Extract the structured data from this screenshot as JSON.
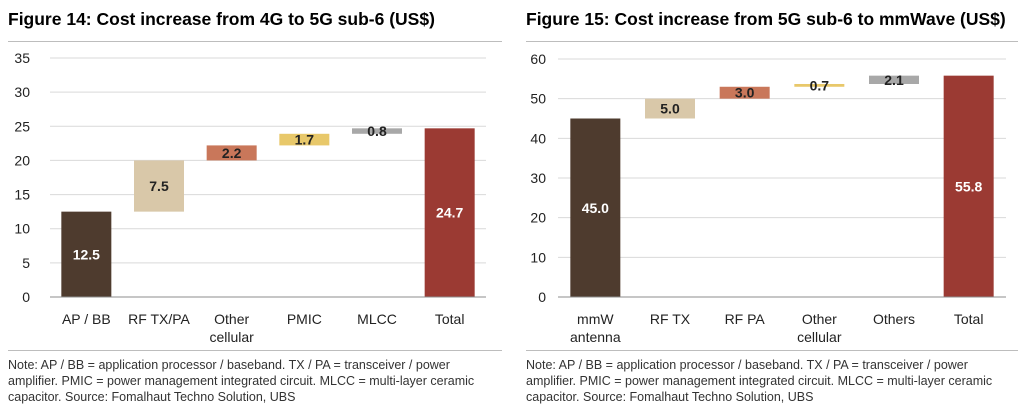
{
  "chart_data": [
    {
      "type": "waterfall",
      "title": "Figure 14: Cost increase from 4G to 5G sub-6 (US$)",
      "categories": [
        [
          "AP / BB"
        ],
        [
          "RF TX/PA"
        ],
        [
          "Other",
          "cellular"
        ],
        [
          "PMIC"
        ],
        [
          "MLCC"
        ],
        [
          "Total"
        ]
      ],
      "bars": [
        {
          "label": "12.5",
          "start": 0,
          "end": 12.5,
          "kind": "base"
        },
        {
          "label": "7.5",
          "start": 12.5,
          "end": 20.0,
          "kind": "increment"
        },
        {
          "label": "2.2",
          "start": 20.0,
          "end": 22.2,
          "kind": "increment"
        },
        {
          "label": "1.7",
          "start": 22.2,
          "end": 23.9,
          "kind": "increment"
        },
        {
          "label": "0.8",
          "start": 23.9,
          "end": 24.7,
          "kind": "increment"
        },
        {
          "label": "24.7",
          "start": 0,
          "end": 24.7,
          "kind": "total"
        }
      ],
      "colors": [
        "#4e3b2e",
        "#d9c8a9",
        "#c9775a",
        "#e8c86a",
        "#a8a8a8",
        "#9b3a33"
      ],
      "ylim": [
        0,
        35
      ],
      "yticks": [
        0,
        5,
        10,
        15,
        20,
        25,
        30,
        35
      ],
      "grid": true,
      "note": "Note: AP / BB = application processor / baseband. TX / PA = transceiver / power amplifier. PMIC = power management integrated circuit. MLCC = multi-layer ceramic capacitor. Source:  Fomalhaut Techno Solution, UBS"
    },
    {
      "type": "waterfall",
      "title": "Figure 15: Cost increase from 5G sub-6 to mmWave (US$)",
      "categories": [
        [
          "mmW",
          "antenna"
        ],
        [
          "RF TX"
        ],
        [
          "RF PA"
        ],
        [
          "Other",
          "cellular"
        ],
        [
          "Others"
        ],
        [
          "Total"
        ]
      ],
      "bars": [
        {
          "label": "45.0",
          "start": 0,
          "end": 45.0,
          "kind": "base"
        },
        {
          "label": "5.0",
          "start": 45.0,
          "end": 50.0,
          "kind": "increment"
        },
        {
          "label": "3.0",
          "start": 50.0,
          "end": 53.0,
          "kind": "increment"
        },
        {
          "label": "0.7",
          "start": 53.0,
          "end": 53.7,
          "kind": "increment"
        },
        {
          "label": "2.1",
          "start": 53.7,
          "end": 55.8,
          "kind": "increment"
        },
        {
          "label": "55.8",
          "start": 0,
          "end": 55.8,
          "kind": "total"
        }
      ],
      "colors": [
        "#4e3b2e",
        "#d9c8a9",
        "#c9775a",
        "#e8c86a",
        "#a8a8a8",
        "#9b3a33"
      ],
      "ylim": [
        0,
        60
      ],
      "yticks": [
        0,
        10,
        20,
        30,
        40,
        50,
        60
      ],
      "grid": true,
      "note": "Note: AP / BB = application processor / baseband. TX / PA = transceiver / power amplifier. PMIC = power management integrated circuit. MLCC = multi-layer ceramic capacitor. Source:  Fomalhaut Techno Solution, UBS"
    }
  ]
}
